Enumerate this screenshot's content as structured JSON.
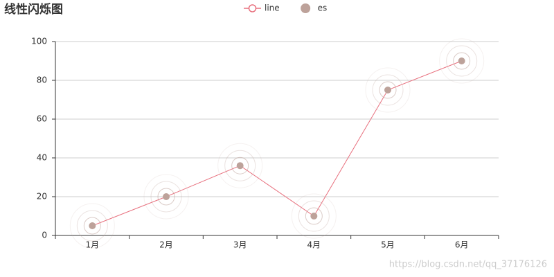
{
  "chart_data": {
    "type": "line",
    "title": "线性闪烁图",
    "categories": [
      "1月",
      "2月",
      "3月",
      "4月",
      "5月",
      "6月"
    ],
    "series": [
      {
        "name": "line",
        "type": "line",
        "color": "#e8707e",
        "values": [
          5,
          20,
          36,
          10,
          75,
          90
        ]
      },
      {
        "name": "es",
        "type": "effectScatter",
        "color": "#bda29a",
        "values": [
          5,
          20,
          36,
          10,
          75,
          90
        ]
      }
    ],
    "ylim": [
      0,
      100
    ],
    "yticks": [
      0,
      20,
      40,
      60,
      80,
      100
    ],
    "grid": true,
    "legend": "top",
    "watermark": "https://blog.csdn.net/qq_37176126"
  }
}
